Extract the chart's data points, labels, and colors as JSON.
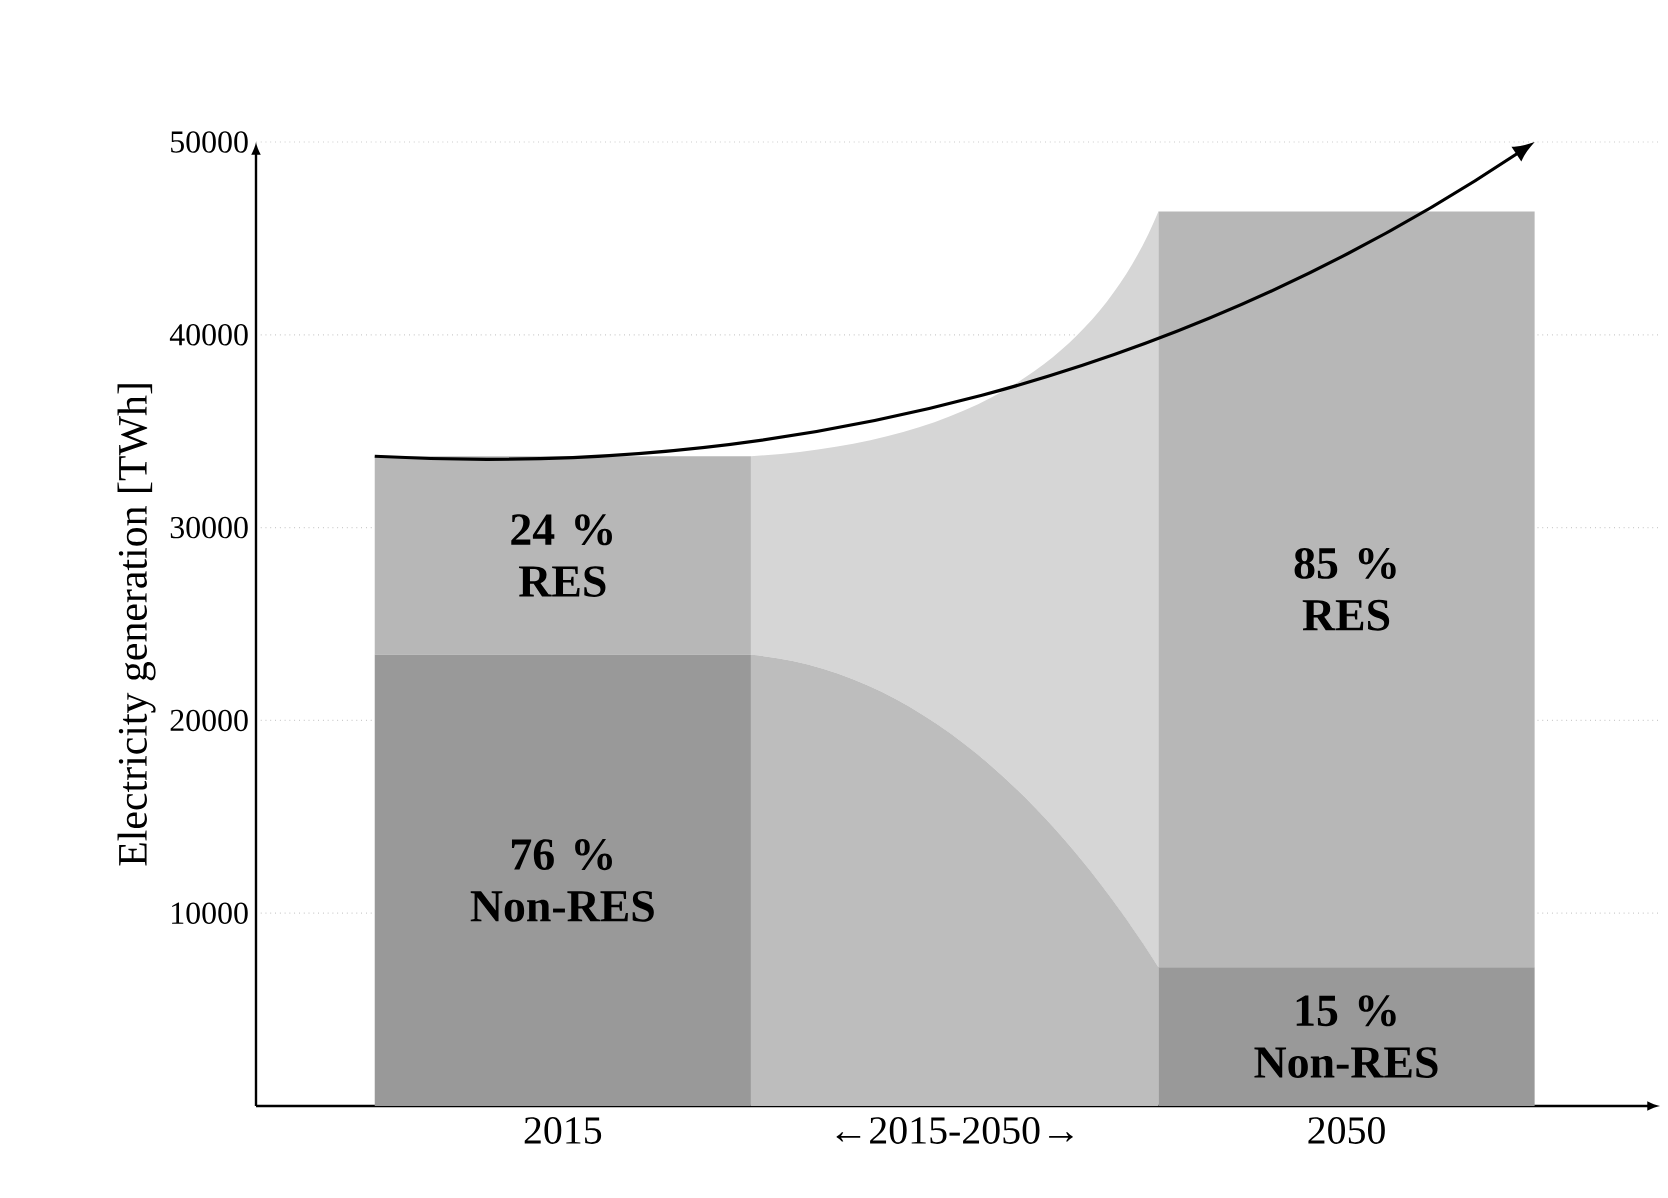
{
  "chart_data": {
    "type": "bar",
    "stacked": true,
    "categories": [
      "2015",
      "←2015-2050→",
      "2050"
    ],
    "series": [
      {
        "color": "#999999",
        "values": [
          23400,
          null,
          7200
        ]
      },
      {
        "color": "#b7b7b7",
        "values": [
          10300,
          null,
          39200
        ]
      }
    ],
    "annotations": [
      "76 % Non-RES",
      "15 % Non-RES",
      "24 % RES",
      "85 % RES"
    ],
    "ylabel": "Electricity generation [TWh]",
    "ylim": [
      0,
      50000
    ],
    "yticks": [
      10000,
      20000,
      30000,
      40000,
      50000
    ],
    "grid": "y"
  }
}
